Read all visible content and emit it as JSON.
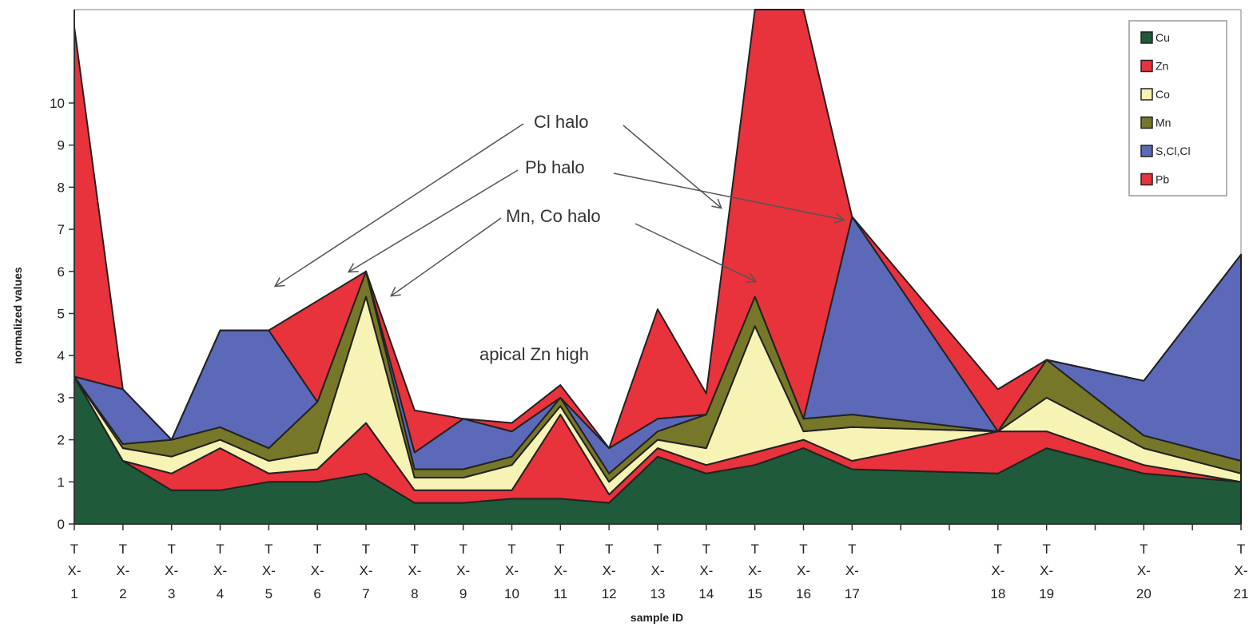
{
  "chart_data": {
    "type": "area",
    "xlabel": "sample ID",
    "ylabel": "normalized values",
    "ylim": [
      0,
      12
    ],
    "yticks": [
      0,
      1,
      2,
      3,
      4,
      5,
      6,
      7,
      8,
      9,
      10
    ],
    "grid": false,
    "legend_position": "top-right",
    "x": [
      1,
      2,
      3,
      4,
      5,
      6,
      7,
      8,
      9,
      10,
      11,
      12,
      13,
      14,
      15,
      16,
      17,
      18,
      19,
      20,
      21
    ],
    "x_positions": [
      1,
      2,
      3,
      4,
      5,
      6,
      7,
      8,
      9,
      10,
      11,
      12,
      13,
      14,
      15,
      16,
      17,
      20,
      21,
      23,
      25
    ],
    "tick_labels": [
      [
        "T",
        "X-",
        "1"
      ],
      [
        "T",
        "X-",
        "2"
      ],
      [
        "T",
        "X-",
        "3"
      ],
      [
        "T",
        "X-",
        "4"
      ],
      [
        "T",
        "X-",
        "5"
      ],
      [
        "T",
        "X-",
        "6"
      ],
      [
        "T",
        "X-",
        "7"
      ],
      [
        "T",
        "X-",
        "8"
      ],
      [
        "T",
        "X-",
        "9"
      ],
      [
        "T",
        "X-",
        "10"
      ],
      [
        "T",
        "X-",
        "11"
      ],
      [
        "T",
        "X-",
        "12"
      ],
      [
        "T",
        "X-",
        "13"
      ],
      [
        "T",
        "X-",
        "14"
      ],
      [
        "T",
        "X-",
        "15"
      ],
      [
        "T",
        "X-",
        "16"
      ],
      [
        "T",
        "X-",
        "17"
      ],
      [
        "T",
        "X-",
        "18"
      ],
      [
        "T",
        "X-",
        "19"
      ],
      [
        "T",
        "X-",
        "20"
      ],
      [
        "T",
        "X-",
        "21"
      ]
    ],
    "series": [
      {
        "name": "Cu",
        "color": "#1f5a3a",
        "values": [
          3.5,
          1.5,
          0.8,
          0.8,
          1.0,
          1.0,
          1.2,
          0.5,
          0.5,
          0.6,
          0.6,
          0.5,
          1.6,
          1.2,
          1.4,
          1.8,
          1.3,
          1.2,
          1.8,
          1.2,
          1.0
        ]
      },
      {
        "name": "Zn",
        "color": "#e8323c",
        "values": [
          0.0,
          0.0,
          0.4,
          1.0,
          0.2,
          0.3,
          1.2,
          0.3,
          0.3,
          0.2,
          2.0,
          0.2,
          0.2,
          0.2,
          0.3,
          0.2,
          0.2,
          1.0,
          0.4,
          0.2,
          0.0
        ]
      },
      {
        "name": "Co",
        "color": "#f7f3b5",
        "values": [
          0.0,
          0.3,
          0.4,
          0.2,
          0.3,
          0.4,
          3.0,
          0.3,
          0.3,
          0.6,
          0.2,
          0.3,
          0.2,
          0.4,
          3.0,
          0.2,
          0.8,
          0.0,
          0.8,
          0.4,
          0.2
        ]
      },
      {
        "name": "Mn",
        "color": "#77772a",
        "values": [
          0.0,
          0.1,
          0.4,
          0.3,
          0.3,
          1.2,
          0.6,
          0.2,
          0.2,
          0.2,
          0.2,
          0.2,
          0.2,
          0.8,
          0.7,
          0.3,
          0.3,
          0.0,
          0.9,
          0.3,
          0.3
        ]
      },
      {
        "name": "S,Cl,Cl",
        "color": "#5b69b8",
        "values": [
          0.0,
          1.3,
          0.0,
          2.3,
          2.8,
          0.0,
          0.0,
          0.4,
          1.2,
          0.6,
          0.0,
          0.6,
          0.3,
          0.0,
          0.0,
          0.0,
          4.7,
          0.0,
          0.0,
          1.3,
          4.9
        ]
      },
      {
        "name": "Pb",
        "color": "#e8323c",
        "values": [
          8.3,
          0.0,
          0.0,
          0.0,
          0.0,
          2.4,
          0.0,
          1.0,
          0.0,
          0.2,
          0.3,
          0.0,
          2.6,
          0.5,
          7.0,
          12.0,
          0.0,
          1.0,
          0.0,
          0.0,
          0.0
        ]
      }
    ],
    "annotations": [
      {
        "text": "Cl halo"
      },
      {
        "text": "Pb halo"
      },
      {
        "text": "Mn, Co halo"
      },
      {
        "text": "apical Zn high"
      }
    ]
  }
}
